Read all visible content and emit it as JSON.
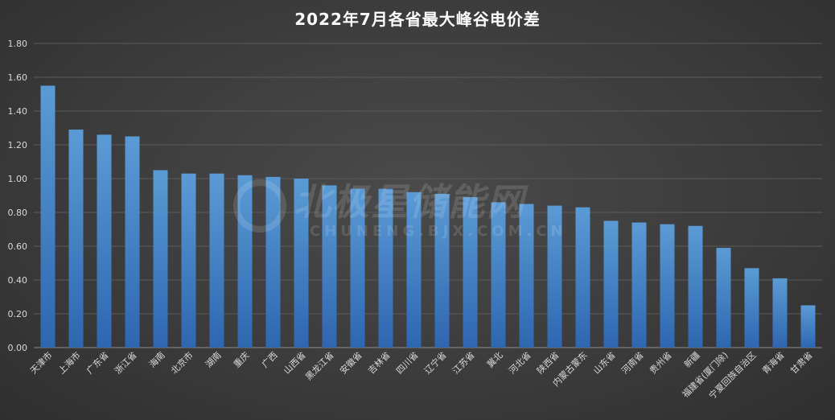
{
  "chart_data": {
    "type": "bar",
    "title": "2022年7月各省最大峰谷电价差",
    "xlabel": "",
    "ylabel": "",
    "ylim": [
      0,
      1.8
    ],
    "yticks": [
      "0.00",
      "0.20",
      "0.40",
      "0.60",
      "0.80",
      "1.00",
      "1.20",
      "1.40",
      "1.60",
      "1.80"
    ],
    "grid": true,
    "legend": "none",
    "categories": [
      "天津市",
      "上海市",
      "广东省",
      "浙江省",
      "海南",
      "北京市",
      "湖南",
      "重庆",
      "广西",
      "山西省",
      "黑龙江省",
      "安徽省",
      "吉林省",
      "四川省",
      "辽宁省",
      "江苏省",
      "冀北",
      "河北省",
      "陕西省",
      "内蒙古蒙东",
      "山东省",
      "河南省",
      "贵州省",
      "新疆",
      "福建省(厦门除)",
      "宁夏回族自治区",
      "青海省",
      "甘肃省"
    ],
    "values": [
      1.55,
      1.29,
      1.26,
      1.25,
      1.05,
      1.03,
      1.03,
      1.02,
      1.01,
      1.0,
      0.96,
      0.94,
      0.94,
      0.92,
      0.91,
      0.89,
      0.86,
      0.85,
      0.84,
      0.83,
      0.75,
      0.74,
      0.73,
      0.72,
      0.59,
      0.47,
      0.41,
      0.25
    ],
    "colors": {
      "bar_top": "#5b9bd5",
      "bar_bottom": "#2e66b0",
      "grid": "#5a5a5a",
      "axis_text": "#d9d9d9"
    }
  },
  "watermark": {
    "main": "北极星储能网",
    "sub": "CHUNENG.BJX.COM.CN"
  }
}
